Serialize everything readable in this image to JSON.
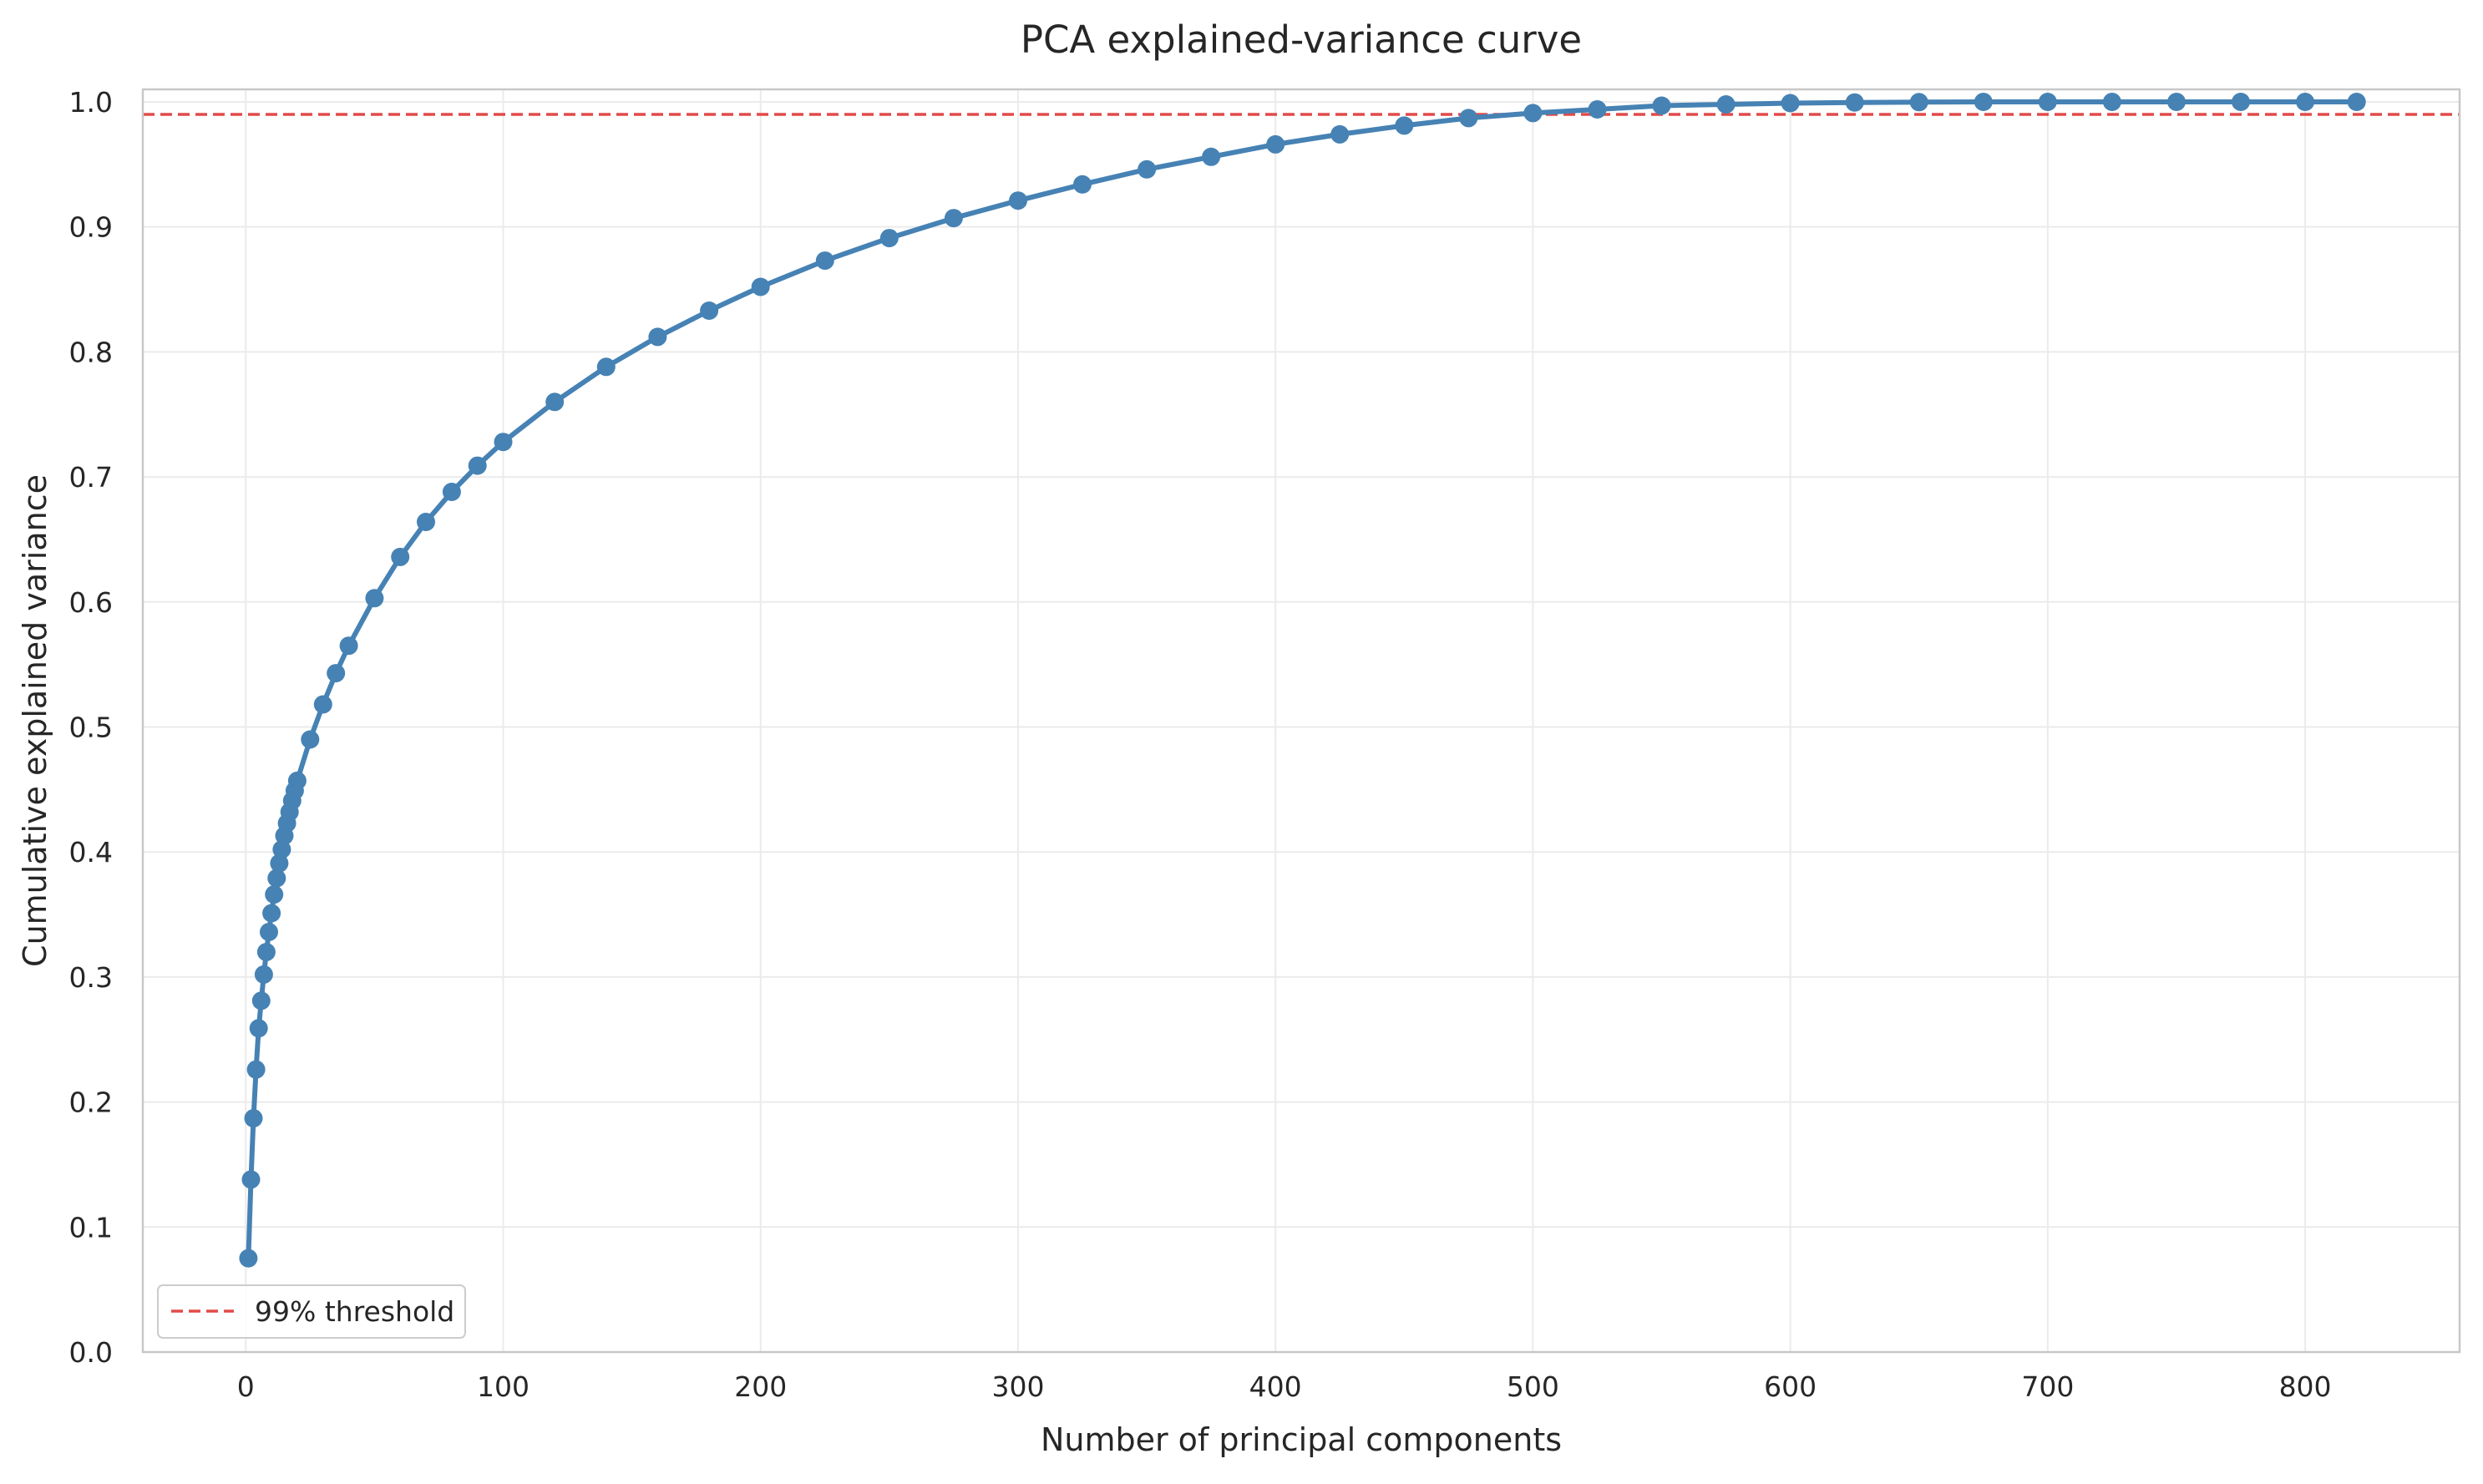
{
  "chart_data": {
    "type": "line",
    "title": "PCA explained-variance curve",
    "xlabel": "Number of principal components",
    "ylabel": "Cumulative explained variance",
    "xlim": [
      -40,
      860
    ],
    "ylim": [
      0,
      1.01
    ],
    "xticks": [
      0,
      100,
      200,
      300,
      400,
      500,
      600,
      700,
      800
    ],
    "yticks": [
      0.0,
      0.1,
      0.2,
      0.3,
      0.4,
      0.5,
      0.6,
      0.7,
      0.8,
      0.9,
      1.0
    ],
    "xtick_labels": [
      "0",
      "100",
      "200",
      "300",
      "400",
      "500",
      "600",
      "700",
      "800"
    ],
    "ytick_labels": [
      "0.0",
      "0.1",
      "0.2",
      "0.3",
      "0.4",
      "0.5",
      "0.6",
      "0.7",
      "0.8",
      "0.9",
      "1.0"
    ],
    "grid": true,
    "legend_position": "lower-left",
    "series": [
      {
        "color": "#4682b4",
        "marker": "circle",
        "x": [
          1,
          2,
          3,
          4,
          5,
          6,
          7,
          8,
          9,
          10,
          11,
          12,
          13,
          14,
          15,
          16,
          17,
          18,
          19,
          20,
          25,
          30,
          35,
          40,
          50,
          60,
          70,
          80,
          90,
          100,
          120,
          140,
          160,
          180,
          200,
          225,
          250,
          275,
          300,
          325,
          350,
          375,
          400,
          425,
          450,
          475,
          500,
          525,
          550,
          575,
          600,
          625,
          650,
          675,
          700,
          725,
          750,
          775,
          800,
          820
        ],
        "y": [
          0.075,
          0.138,
          0.187,
          0.226,
          0.259,
          0.281,
          0.302,
          0.32,
          0.336,
          0.351,
          0.366,
          0.379,
          0.391,
          0.402,
          0.413,
          0.423,
          0.432,
          0.441,
          0.449,
          0.457,
          0.49,
          0.518,
          0.543,
          0.565,
          0.603,
          0.636,
          0.664,
          0.688,
          0.709,
          0.728,
          0.76,
          0.788,
          0.812,
          0.833,
          0.852,
          0.873,
          0.891,
          0.907,
          0.921,
          0.934,
          0.946,
          0.956,
          0.966,
          0.974,
          0.981,
          0.987,
          0.991,
          0.994,
          0.997,
          0.998,
          0.999,
          0.9995,
          0.9998,
          1.0,
          1.0,
          1.0,
          1.0,
          1.0,
          1.0,
          1.0
        ]
      }
    ],
    "threshold": {
      "name": "99% threshold",
      "y": 0.99,
      "color": "#e24a4a",
      "style": "dashed"
    }
  }
}
